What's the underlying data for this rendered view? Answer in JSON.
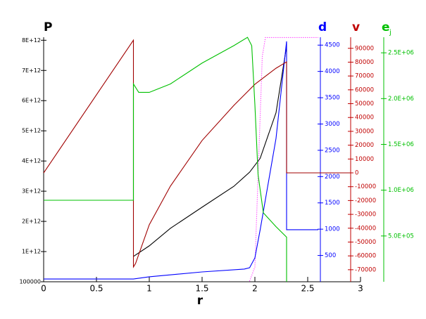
{
  "chart_data": {
    "type": "line",
    "x_label": "r",
    "y_label": "P",
    "y2_label": "d",
    "y3_label": "v",
    "y4_label": "e",
    "y4_label_sub": "j",
    "xlim": [
      0,
      3
    ],
    "xticks": [
      0,
      0.5,
      1,
      1.5,
      2,
      2.5,
      3
    ],
    "ylim": [
      0,
      8100000000000
    ],
    "yticks": [
      100000,
      {
        "value": 1000000000000,
        "label": "1E+12"
      },
      {
        "value": 2000000000000,
        "label": "2E+12"
      },
      {
        "value": 3000000000000,
        "label": "3E+12"
      },
      {
        "value": 4000000000000,
        "label": "4E+12"
      },
      {
        "value": 5000000000000,
        "label": "5E+12"
      },
      {
        "value": 6000000000000,
        "label": "6E+12"
      },
      {
        "value": 7000000000000,
        "label": "7E+12"
      },
      {
        "value": 8000000000000,
        "label": "8E+12"
      }
    ],
    "y2lim": [
      0,
      4650
    ],
    "y2ticks": [
      500,
      1000,
      1500,
      2000,
      2500,
      3000,
      3500,
      4000,
      4500
    ],
    "y3lim": [
      -78700,
      98000
    ],
    "y3ticks": [
      90000,
      80000,
      70000,
      60000,
      50000,
      40000,
      30000,
      20000,
      10000,
      0,
      -10000,
      -20000,
      -30000,
      -40000,
      -50000,
      -60000,
      -70000
    ],
    "y4lim": [
      0,
      2670000
    ],
    "y4ticks": [
      {
        "value": 500000,
        "label": "5.0E+05"
      },
      {
        "value": 1000000,
        "label": "1.0E+06"
      },
      {
        "value": 1500000,
        "label": "1.5E+06"
      },
      {
        "value": 2000000,
        "label": "2.0E+06"
      },
      {
        "value": 2500000,
        "label": "2.5E+06"
      }
    ],
    "series": [
      {
        "axis": "y",
        "color": "#000000",
        "x": [
          0.85,
          1.0,
          1.2,
          1.5,
          1.8,
          1.95,
          2.05,
          2.2,
          2.3
        ],
        "values": [
          840000000000,
          1190000000000,
          1770000000000,
          2470000000000,
          3160000000000,
          3630000000000,
          4090000000000,
          5600000000000,
          7810000000000
        ]
      },
      {
        "axis": "y",
        "color": "#ff00ff",
        "dash": true,
        "x": [
          1.95,
          2.0,
          2.03,
          2.07,
          2.1,
          2.6
        ],
        "values": [
          20000000000,
          490000000000,
          3510000000000,
          7470000000000,
          8090000000000,
          8090000000000
        ]
      },
      {
        "axis": "y2",
        "color": "#0000ff",
        "x": [
          0,
          0.85,
          1.0,
          1.5,
          1.9,
          1.95,
          2.0,
          2.05,
          2.2,
          2.3,
          2.3,
          2.6
        ],
        "values": [
          53,
          53,
          94,
          187,
          241,
          267,
          455,
          990,
          2727,
          4572,
          989,
          989
        ]
      },
      {
        "axis": "y3",
        "color": "#a00000",
        "x": [
          0,
          0.85,
          0.85,
          0.87,
          1.0,
          1.2,
          1.5,
          1.8,
          2.0,
          2.2,
          2.3,
          2.3,
          2.9
        ],
        "values": [
          0,
          95900,
          -68000,
          -65500,
          -37500,
          -9600,
          23400,
          48700,
          64000,
          75600,
          80200,
          0,
          0
        ]
      },
      {
        "axis": "y4",
        "color": "#00c000",
        "x": [
          0,
          0.85,
          0.85,
          0.9,
          1.0,
          1.2,
          1.5,
          1.8,
          1.93,
          1.97,
          2.0,
          2.03,
          2.08,
          2.2,
          2.3,
          2.3
        ],
        "values": [
          890000,
          890000,
          2160000,
          2068000,
          2068000,
          2160000,
          2388000,
          2578000,
          2669000,
          2578000,
          1932000,
          1171000,
          753000,
          601000,
          487000,
          0
        ]
      }
    ]
  }
}
